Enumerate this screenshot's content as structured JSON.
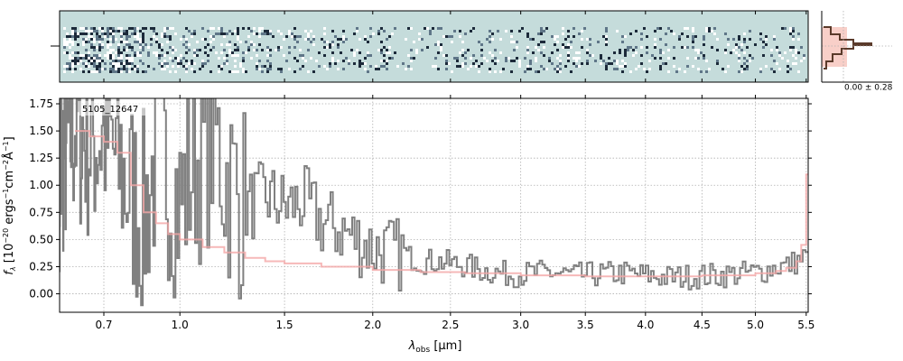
{
  "chart_data": {
    "type": "line",
    "object_label": "5105_12647",
    "xlabel_main": "λ",
    "xlabel_sub": "obs",
    "xlabel_unit": " [μm]",
    "ylabel": "f_λ [10^-20 ergs^-1 cm^-2 Å^-1]",
    "ylabel_parts": {
      "f": "f",
      "f_sub": "λ",
      "prefix": " [10",
      "exp1": "−20",
      "mid1": " ergs",
      "exp2": "−1",
      "mid2": "cm",
      "exp3": "−2",
      "mid3": "Å",
      "exp4": "−1",
      "suffix": "]"
    },
    "histogram_label": "0.00 ± 0.28",
    "xlim": [
      0.55,
      5.52
    ],
    "ylim": [
      -0.17,
      1.8
    ],
    "x_scale": "sqrt",
    "grid": true,
    "x_ticks": [
      0.7,
      1.0,
      1.5,
      2.0,
      2.5,
      3.0,
      3.5,
      4.0,
      4.5,
      5.0,
      5.5
    ],
    "x_tick_labels": [
      "0.7",
      "1.0",
      "1.5",
      "2.0",
      "2.5",
      "3.0",
      "3.5",
      "4.0",
      "4.5",
      "5.0",
      "5.5"
    ],
    "y_ticks": [
      0.0,
      0.25,
      0.5,
      0.75,
      1.0,
      1.25,
      1.5,
      1.75
    ],
    "y_tick_labels": [
      "0.00",
      "0.25",
      "0.50",
      "0.75",
      "1.00",
      "1.25",
      "1.50",
      "1.75"
    ],
    "series": [
      {
        "role": "spectrum",
        "color": "#808080",
        "x": [
          0.55,
          0.6,
          0.65,
          0.7,
          0.75,
          0.8,
          0.85,
          0.9,
          0.95,
          1.0,
          1.05,
          1.1,
          1.15,
          1.2,
          1.3,
          1.4,
          1.5,
          1.6,
          1.7,
          1.8,
          1.9,
          2.0,
          2.1,
          2.2,
          2.3,
          2.4,
          2.5,
          2.6,
          2.7,
          2.8,
          2.9,
          3.0,
          3.2,
          3.4,
          3.6,
          3.8,
          4.0,
          4.2,
          4.4,
          4.6,
          4.8,
          5.0,
          5.1,
          5.2,
          5.3,
          5.4,
          5.5
        ],
        "y": [
          1.2,
          1.6,
          1.4,
          1.5,
          1.2,
          0.9,
          0.7,
          1.3,
          1.1,
          0.8,
          1.2,
          1.3,
          1.5,
          1.1,
          0.8,
          0.9,
          0.8,
          0.85,
          0.65,
          0.6,
          0.5,
          0.42,
          0.38,
          0.35,
          0.3,
          0.3,
          0.28,
          0.26,
          0.22,
          0.2,
          0.18,
          0.18,
          0.2,
          0.17,
          0.18,
          0.19,
          0.17,
          0.15,
          0.16,
          0.17,
          0.18,
          0.2,
          0.22,
          0.25,
          0.26,
          0.3,
          0.35
        ]
      },
      {
        "role": "model",
        "color": "#f4a6a6",
        "x": [
          0.6,
          0.65,
          0.7,
          0.75,
          0.8,
          0.85,
          0.9,
          0.95,
          1.0,
          1.1,
          1.2,
          1.3,
          1.4,
          1.5,
          1.7,
          2.0,
          2.3,
          2.6,
          3.0,
          3.5,
          4.0,
          4.5,
          5.0,
          5.2,
          5.3,
          5.4,
          5.45,
          5.5
        ],
        "y": [
          1.5,
          1.45,
          1.4,
          1.3,
          1.0,
          0.75,
          0.65,
          0.55,
          0.5,
          0.43,
          0.38,
          0.33,
          0.3,
          0.28,
          0.25,
          0.22,
          0.2,
          0.19,
          0.17,
          0.16,
          0.16,
          0.17,
          0.19,
          0.21,
          0.24,
          0.3,
          0.45,
          1.1
        ]
      }
    ]
  }
}
